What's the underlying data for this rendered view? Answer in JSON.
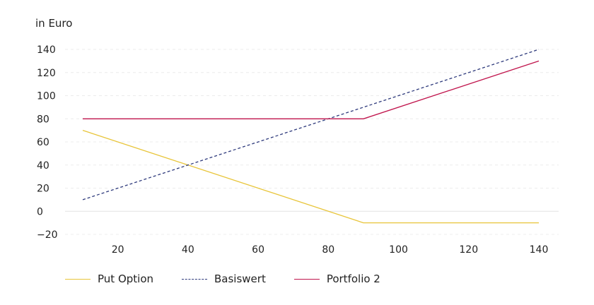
{
  "chart_data": {
    "type": "line",
    "title": "",
    "ylabel": "in Euro",
    "xlabel": "",
    "x_ticks": [
      20,
      40,
      60,
      80,
      100,
      120,
      140
    ],
    "y_ticks": [
      -20,
      0,
      20,
      40,
      60,
      80,
      100,
      120,
      140
    ],
    "xlim": [
      10,
      140
    ],
    "ylim": [
      -20,
      140
    ],
    "grid": "horizontal dashed",
    "legend_placement": "bottom-left",
    "series": [
      {
        "name": "Put Option",
        "color": "#e8c53a",
        "dash": "solid",
        "points": [
          [
            10,
            70
          ],
          [
            90,
            -10
          ],
          [
            140,
            -10
          ]
        ]
      },
      {
        "name": "Basiswert",
        "color": "#2e3a7c",
        "dash": "dashed",
        "points": [
          [
            10,
            10
          ],
          [
            140,
            140
          ]
        ]
      },
      {
        "name": "Portfolio 2",
        "color": "#c0144c",
        "dash": "solid",
        "points": [
          [
            10,
            80
          ],
          [
            90,
            80
          ],
          [
            140,
            130
          ]
        ]
      }
    ]
  }
}
